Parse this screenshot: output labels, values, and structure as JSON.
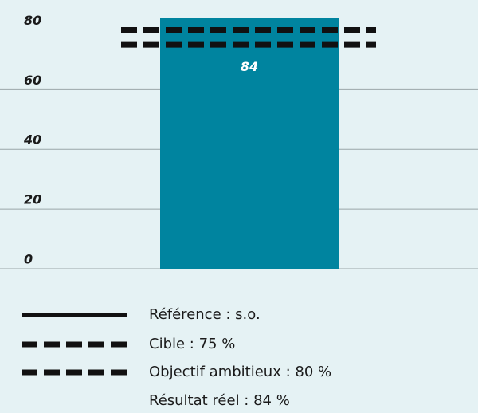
{
  "chart_data": {
    "type": "bar",
    "categories": [
      null
    ],
    "series": [
      {
        "name": "Résultat réel : 84 %",
        "color": "#00849f",
        "values": [
          84
        ]
      }
    ],
    "reference_lines": [
      {
        "name": "Référence : s.o.",
        "style": "solid"
      },
      {
        "name": "Cible : 75 %",
        "value": 75,
        "style": "dashed"
      },
      {
        "name": "Objectif ambitieux : 80 %",
        "value": 80,
        "style": "dashed"
      }
    ],
    "ylim": [
      0,
      90
    ],
    "yticks": [
      0,
      20,
      40,
      60,
      80
    ],
    "grid": true
  }
}
